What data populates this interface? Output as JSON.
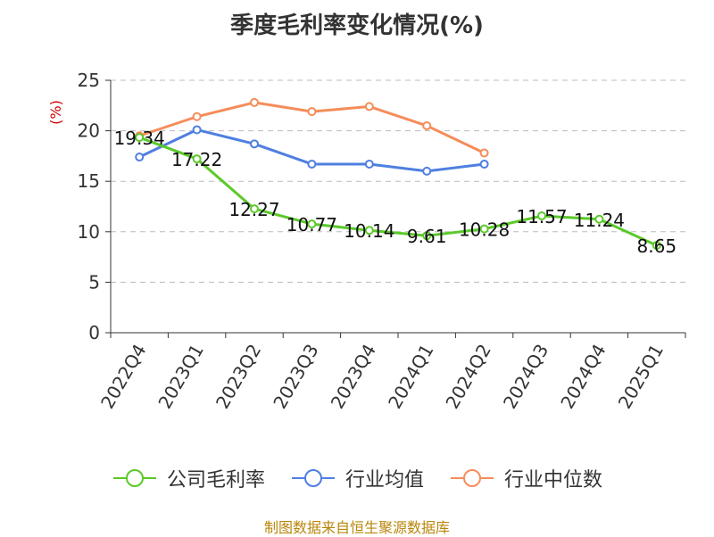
{
  "chart_data": {
    "type": "line",
    "title": "季度毛利率变化情况(%)",
    "ylabel": "(%)",
    "xlabel": "",
    "ylim": [
      0,
      25
    ],
    "yticks": [
      0,
      5,
      10,
      15,
      20,
      25
    ],
    "grid": true,
    "legend_position": "bottom",
    "categories": [
      "2022Q4",
      "2023Q1",
      "2023Q2",
      "2023Q3",
      "2023Q4",
      "2024Q1",
      "2024Q2",
      "2024Q3",
      "2024Q4",
      "2025Q1"
    ],
    "series": [
      {
        "name": "公司毛利率",
        "color": "#5bc92a",
        "values": [
          19.34,
          17.22,
          12.27,
          10.77,
          10.14,
          9.61,
          10.28,
          11.57,
          11.24,
          8.65
        ],
        "labels": [
          "19.34",
          "17.22",
          "12.27",
          "10.77",
          "10.14",
          "9.61",
          "10.28",
          "11.57",
          "11.24",
          "8.65"
        ]
      },
      {
        "name": "行业均值",
        "color": "#4f7fe0",
        "values": [
          17.4,
          20.1,
          18.7,
          16.7,
          16.7,
          16.0,
          16.7,
          null,
          null,
          null
        ]
      },
      {
        "name": "行业中位数",
        "color": "#f58d5a",
        "values": [
          19.5,
          21.4,
          22.8,
          21.9,
          22.4,
          20.5,
          17.8,
          null,
          null,
          null
        ]
      }
    ]
  },
  "source_note": "制图数据来自恒生聚源数据库",
  "colors": {
    "text": "#333333",
    "ylabel": "#cc0000",
    "grid": "#bbbbbb",
    "source": "#b8860b"
  }
}
